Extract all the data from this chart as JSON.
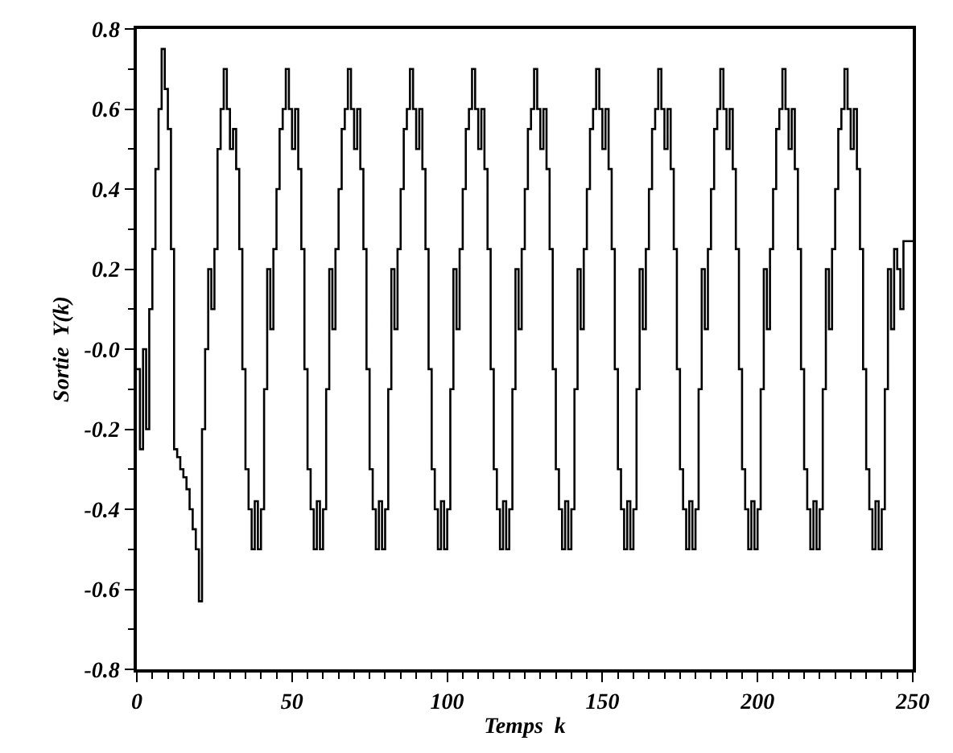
{
  "chart_data": {
    "type": "step",
    "xlabel": "Temps  k",
    "ylabel": "Sortie  Y(k)",
    "xlim": [
      0,
      250
    ],
    "xticks": [
      0,
      50,
      100,
      150,
      200,
      250
    ],
    "ylim": [
      -0.8,
      0.8
    ],
    "yticks": [
      -0.8,
      -0.6,
      -0.4,
      -0.2,
      {
        "value": 0,
        "label": "-0.0"
      },
      0.2,
      0.4,
      0.6,
      0.8
    ],
    "marker": "none",
    "line_style": "solid",
    "x": [
      0,
      1,
      2,
      3,
      4,
      5,
      6,
      7,
      8,
      9,
      10,
      11,
      12,
      13,
      14,
      15,
      16,
      17,
      18,
      19,
      20,
      21,
      22,
      23,
      24,
      25,
      26,
      27,
      28,
      29,
      30,
      31,
      32,
      33,
      34,
      35,
      36,
      37,
      38,
      39,
      40,
      41,
      42,
      43,
      44,
      45,
      46,
      47,
      48,
      49,
      50,
      51,
      52,
      53,
      54,
      55,
      56,
      57,
      58,
      59,
      60,
      61,
      62,
      63,
      64,
      65,
      66,
      67,
      68,
      69,
      70,
      71,
      72,
      73,
      74,
      75,
      76,
      77,
      78,
      79,
      80,
      81,
      82,
      83,
      84,
      85,
      86,
      87,
      88,
      89,
      90,
      91,
      92,
      93,
      94,
      95,
      96,
      97,
      98,
      99,
      100,
      101,
      102,
      103,
      104,
      105,
      106,
      107,
      108,
      109,
      110,
      111,
      112,
      113,
      114,
      115,
      116,
      117,
      118,
      119,
      120,
      121,
      122,
      123,
      124,
      125,
      126,
      127,
      128,
      129,
      130,
      131,
      132,
      133,
      134,
      135,
      136,
      137,
      138,
      139,
      140,
      141,
      142,
      143,
      144,
      145,
      146,
      147,
      148,
      149,
      150,
      151,
      152,
      153,
      154,
      155,
      156,
      157,
      158,
      159,
      160,
      161,
      162,
      163,
      164,
      165,
      166,
      167,
      168,
      169,
      170,
      171,
      172,
      173,
      174,
      175,
      176,
      177,
      178,
      179,
      180,
      181,
      182,
      183,
      184,
      185,
      186,
      187,
      188,
      189,
      190,
      191,
      192,
      193,
      194,
      195,
      196,
      197,
      198,
      199,
      200,
      201,
      202,
      203,
      204,
      205,
      206,
      207,
      208,
      209,
      210,
      211,
      212,
      213,
      214,
      215,
      216,
      217,
      218,
      219,
      220,
      221,
      222,
      223,
      224,
      225,
      226,
      227,
      228,
      229,
      230,
      231,
      232,
      233,
      234,
      235,
      236,
      237,
      238,
      239,
      240,
      241,
      242,
      243,
      244,
      245,
      246,
      247,
      248,
      249,
      250
    ],
    "series": [
      {
        "color": "#000000",
        "values": [
          -0.05,
          -0.25,
          0.0,
          -0.2,
          0.1,
          0.25,
          0.45,
          0.6,
          0.75,
          0.65,
          0.55,
          0.25,
          -0.25,
          -0.27,
          -0.3,
          -0.32,
          -0.35,
          -0.4,
          -0.45,
          -0.5,
          -0.63,
          -0.2,
          0.0,
          0.2,
          0.1,
          0.25,
          0.5,
          0.6,
          0.7,
          0.6,
          0.5,
          0.55,
          0.45,
          0.25,
          -0.05,
          -0.3,
          -0.4,
          -0.5,
          -0.38,
          -0.5,
          -0.4,
          -0.1,
          0.2,
          0.05,
          0.25,
          0.4,
          0.55,
          0.6,
          0.7,
          0.6,
          0.5,
          0.6,
          0.45,
          0.25,
          -0.05,
          -0.3,
          -0.4,
          -0.5,
          -0.38,
          -0.5,
          -0.4,
          -0.1,
          0.2,
          0.05,
          0.25,
          0.4,
          0.55,
          0.6,
          0.7,
          0.6,
          0.5,
          0.6,
          0.45,
          0.25,
          -0.05,
          -0.3,
          -0.4,
          -0.5,
          -0.38,
          -0.5,
          -0.4,
          -0.1,
          0.2,
          0.05,
          0.25,
          0.4,
          0.55,
          0.6,
          0.7,
          0.6,
          0.5,
          0.6,
          0.45,
          0.25,
          -0.05,
          -0.3,
          -0.4,
          -0.5,
          -0.38,
          -0.5,
          -0.4,
          -0.1,
          0.2,
          0.05,
          0.25,
          0.4,
          0.55,
          0.6,
          0.7,
          0.6,
          0.5,
          0.6,
          0.45,
          0.25,
          -0.05,
          -0.3,
          -0.4,
          -0.5,
          -0.38,
          -0.5,
          -0.4,
          -0.1,
          0.2,
          0.05,
          0.25,
          0.4,
          0.55,
          0.6,
          0.7,
          0.6,
          0.5,
          0.6,
          0.45,
          0.25,
          -0.05,
          -0.3,
          -0.4,
          -0.5,
          -0.38,
          -0.5,
          -0.4,
          -0.1,
          0.2,
          0.05,
          0.25,
          0.4,
          0.55,
          0.6,
          0.7,
          0.6,
          0.5,
          0.6,
          0.45,
          0.25,
          -0.05,
          -0.3,
          -0.4,
          -0.5,
          -0.38,
          -0.5,
          -0.4,
          -0.1,
          0.2,
          0.05,
          0.25,
          0.4,
          0.55,
          0.6,
          0.7,
          0.6,
          0.5,
          0.6,
          0.45,
          0.25,
          -0.05,
          -0.3,
          -0.4,
          -0.5,
          -0.38,
          -0.5,
          -0.4,
          -0.1,
          0.2,
          0.05,
          0.25,
          0.4,
          0.55,
          0.6,
          0.7,
          0.6,
          0.5,
          0.6,
          0.45,
          0.25,
          -0.05,
          -0.3,
          -0.4,
          -0.5,
          -0.38,
          -0.5,
          -0.4,
          -0.1,
          0.2,
          0.05,
          0.25,
          0.4,
          0.55,
          0.6,
          0.7,
          0.6,
          0.5,
          0.6,
          0.45,
          0.25,
          -0.05,
          -0.3,
          -0.4,
          -0.5,
          -0.38,
          -0.5,
          -0.4,
          -0.1,
          0.2,
          0.05,
          0.25,
          0.4,
          0.55,
          0.6,
          0.7,
          0.6,
          0.5,
          0.6,
          0.45,
          0.25,
          -0.05,
          -0.3,
          -0.4,
          -0.5,
          -0.38,
          -0.5,
          -0.4,
          -0.1,
          0.2,
          0.05,
          0.25,
          0.2,
          0.1,
          0.27,
          0.27,
          0.27,
          0.27
        ]
      }
    ]
  }
}
